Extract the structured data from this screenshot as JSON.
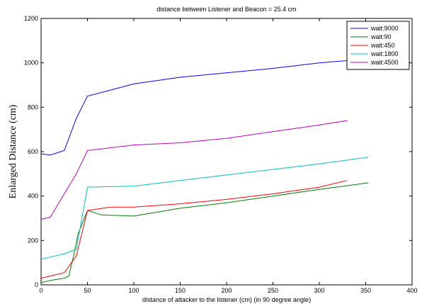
{
  "chart_data": {
    "type": "line",
    "title": "distance between Listener and Beacon = 25.4 cm",
    "xlabel": "distance of attacker to the listener (cm) (in 90 degree angle)",
    "ylabel": "Enlarged Distance (cm)",
    "xlim": [
      0,
      400
    ],
    "ylim": [
      0,
      1200
    ],
    "xticks": [
      "0",
      "50",
      "100",
      "150",
      "200",
      "250",
      "300",
      "350",
      "400"
    ],
    "yticks": [
      "0",
      "200",
      "400",
      "600",
      "800",
      "1000",
      "1200"
    ],
    "grid": false,
    "legend_position": "top-right",
    "series": [
      {
        "name": "wait:9000",
        "color": "#0000ff",
        "x": [
          0,
          10,
          25,
          38,
          50,
          100,
          150,
          200,
          250,
          300,
          330
        ],
        "y": [
          590,
          585,
          605,
          750,
          850,
          905,
          935,
          955,
          975,
          1000,
          1010
        ]
      },
      {
        "name": "wait:90",
        "color": "#008000",
        "x": [
          0,
          10,
          25,
          30,
          35,
          40,
          50,
          65,
          100,
          150,
          200,
          250,
          300,
          353
        ],
        "y": [
          10,
          20,
          30,
          40,
          130,
          230,
          335,
          315,
          310,
          345,
          370,
          400,
          430,
          460
        ]
      },
      {
        "name": "wait:450",
        "color": "#ff0000",
        "x": [
          0,
          10,
          25,
          38,
          50,
          75,
          100,
          150,
          200,
          250,
          300,
          330
        ],
        "y": [
          30,
          40,
          55,
          130,
          335,
          350,
          350,
          365,
          385,
          410,
          440,
          470
        ]
      },
      {
        "name": "wait:1800",
        "color": "#00bfbf",
        "x": [
          0,
          10,
          25,
          38,
          50,
          100,
          150,
          200,
          250,
          300,
          353
        ],
        "y": [
          115,
          125,
          140,
          160,
          440,
          445,
          470,
          495,
          520,
          545,
          575
        ]
      },
      {
        "name": "wait:4500",
        "color": "#bf00bf",
        "x": [
          0,
          10,
          25,
          38,
          50,
          100,
          150,
          200,
          250,
          300,
          330
        ],
        "y": [
          295,
          305,
          410,
          500,
          605,
          630,
          640,
          660,
          690,
          720,
          740
        ]
      }
    ]
  }
}
